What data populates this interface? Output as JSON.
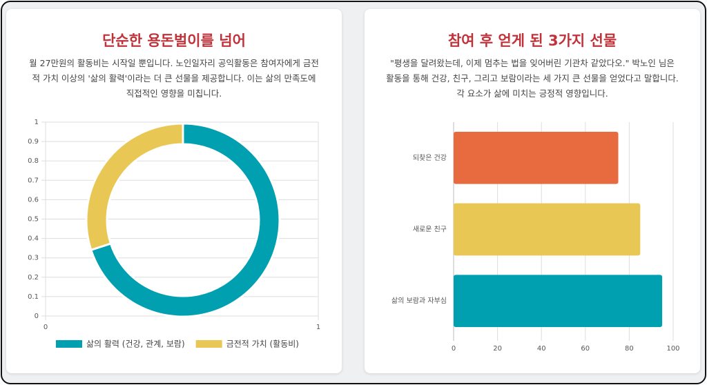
{
  "chart_data": [
    {
      "type": "doughnut",
      "title": "단순한 용돈벌이를 넘어",
      "subtitle": "월 27만원의 활동비는 시작일 뿐입니다. 노인일자리 공익활동은 참여자에게 금전적 가치 이상의 '삶의 활력'이라는 더 큰 선물을 제공합니다. 이는 삶의 만족도에 직접적인 영향을 미칩니다.",
      "categories": [
        "삶의 활력 (건강, 관계, 보람)",
        "금전적 가치 (활동비)"
      ],
      "values": [
        70,
        30
      ],
      "colors": [
        "#00a0b0",
        "#e9c755"
      ],
      "xlim": [
        0,
        1
      ],
      "xticks": [
        0,
        1
      ],
      "ylim": [
        0,
        1
      ],
      "yticks": [
        0,
        0.1,
        0.2,
        0.3,
        0.4,
        0.5,
        0.6,
        0.7,
        0.8,
        0.9,
        1
      ],
      "grid": true,
      "legend": "bottom"
    },
    {
      "type": "bar",
      "orientation": "horizontal",
      "title": "참여 후 얻게 된 3가지 선물",
      "subtitle": "\"평생을 달려왔는데, 이제 멈추는 법을 잊어버린 기관차 같았다오.\" 박노인 님은 활동을 통해 건강, 친구, 그리고 보람이라는 세 가지 큰 선물을 얻었다고 말합니다. 각 요소가 삶에 미치는 긍정적 영향입니다.",
      "categories": [
        "되찾은 건강",
        "새로운 친구",
        "삶의 보람과 자부심"
      ],
      "values": [
        75,
        85,
        95
      ],
      "colors": [
        "#e86a3f",
        "#e9c755",
        "#00a0b0"
      ],
      "xlim": [
        0,
        100
      ],
      "xticks": [
        0,
        20,
        40,
        60,
        80,
        100
      ],
      "grid": true
    }
  ]
}
